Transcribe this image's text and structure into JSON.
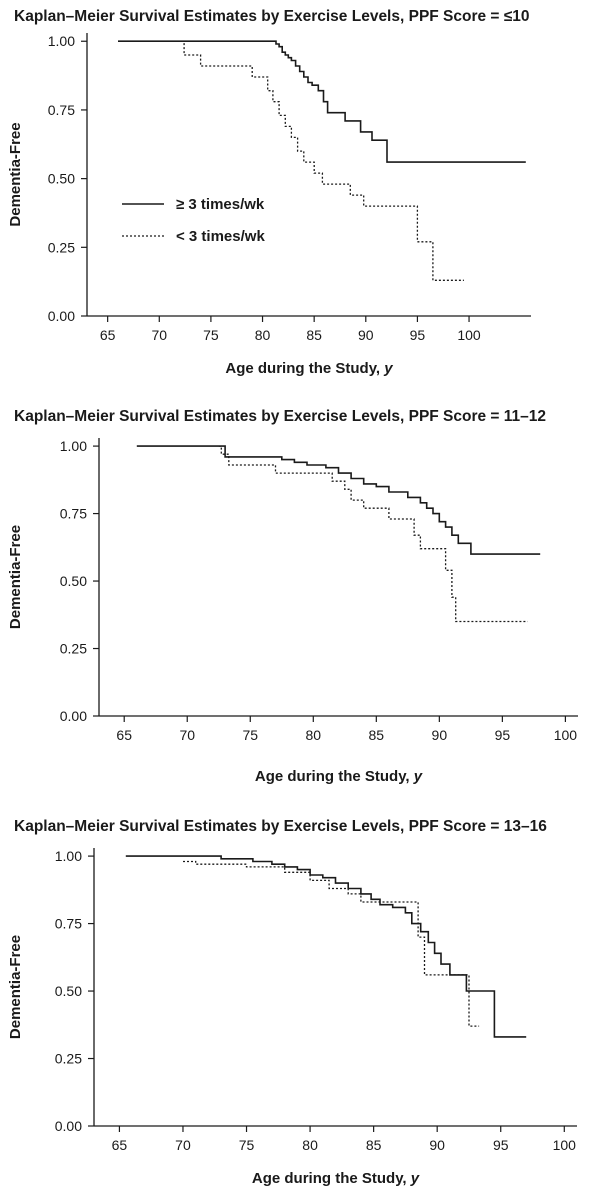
{
  "chart_data": [
    {
      "type": "line",
      "step": true,
      "title": "Kaplan–Meier Survival Estimates by Exercise Levels, PPF Score = ≤10",
      "xlabel": "Age during the Study,",
      "xlabel_var": "y",
      "ylabel": "Dementia-Free",
      "xlim": [
        63,
        106
      ],
      "ylim": [
        0,
        1.03
      ],
      "xticks": [
        "65",
        "70",
        "75",
        "80",
        "85",
        "90",
        "95",
        "100"
      ],
      "yticks": [
        "1.00",
        "0.75",
        "0.50",
        "0.25",
        "0.00"
      ],
      "legend_position": "left-middle",
      "legend": [
        {
          "label": "≥ 3 times/wk",
          "style": "solid"
        },
        {
          "label": "< 3 times/wk",
          "style": "dotted"
        }
      ],
      "series": [
        {
          "name": "≥ 3 times/wk",
          "style": "solid",
          "x": [
            66,
            81,
            81.3,
            81.6,
            81.9,
            82.2,
            82.5,
            82.8,
            83.2,
            83.6,
            84.0,
            84.4,
            84.8,
            85.4,
            85.9,
            86.3,
            87.0,
            88.0,
            89.5,
            90.6,
            92.0,
            92.05,
            105.5
          ],
          "y": [
            1.0,
            1.0,
            0.99,
            0.98,
            0.96,
            0.95,
            0.94,
            0.93,
            0.91,
            0.89,
            0.87,
            0.85,
            0.84,
            0.82,
            0.78,
            0.74,
            0.74,
            0.71,
            0.67,
            0.64,
            0.64,
            0.56,
            0.56
          ]
        },
        {
          "name": "< 3 times/wk",
          "style": "dotted",
          "x": [
            72.2,
            72.4,
            74.0,
            78.5,
            79.0,
            80.5,
            81.0,
            81.6,
            82.2,
            82.8,
            83.4,
            84.0,
            85.0,
            85.8,
            87.0,
            88.5,
            89.8,
            91.2,
            95.0,
            96.5,
            99.5
          ],
          "y": [
            1.0,
            0.95,
            0.91,
            0.91,
            0.87,
            0.82,
            0.78,
            0.73,
            0.69,
            0.65,
            0.6,
            0.56,
            0.52,
            0.48,
            0.48,
            0.44,
            0.4,
            0.4,
            0.27,
            0.13,
            0.13
          ]
        }
      ]
    },
    {
      "type": "line",
      "step": true,
      "title": "Kaplan–Meier Survival Estimates by Exercise Levels, PPF Score = 11–12",
      "xlabel": "Age during the Study,",
      "xlabel_var": "y",
      "ylabel": "Dementia-Free",
      "xlim": [
        63,
        101
      ],
      "ylim": [
        0,
        1.03
      ],
      "xticks": [
        "65",
        "70",
        "75",
        "80",
        "85",
        "90",
        "95",
        "100"
      ],
      "yticks": [
        "1.00",
        "0.75",
        "0.50",
        "0.25",
        "0.00"
      ],
      "series": [
        {
          "name": "≥ 3 times/wk",
          "style": "solid",
          "x": [
            66,
            71.5,
            73.0,
            75.0,
            77.5,
            78.5,
            79.5,
            81.0,
            82.0,
            83.0,
            84.0,
            85.0,
            86.0,
            87.5,
            88.5,
            89.0,
            89.5,
            90.0,
            90.5,
            91.0,
            91.5,
            92.5,
            98.0
          ],
          "y": [
            1.0,
            1.0,
            0.96,
            0.96,
            0.95,
            0.94,
            0.93,
            0.92,
            0.9,
            0.88,
            0.86,
            0.85,
            0.83,
            0.81,
            0.79,
            0.77,
            0.75,
            0.72,
            0.7,
            0.67,
            0.64,
            0.6,
            0.6
          ]
        },
        {
          "name": "< 3 times/wk",
          "style": "dotted",
          "x": [
            72.5,
            72.7,
            73.3,
            76.0,
            77.0,
            80.5,
            81.5,
            82.5,
            83.0,
            84.0,
            86.0,
            87.0,
            88.0,
            88.5,
            89.5,
            90.5,
            91.0,
            91.3,
            97.0
          ],
          "y": [
            1.0,
            0.97,
            0.93,
            0.93,
            0.9,
            0.9,
            0.87,
            0.84,
            0.8,
            0.77,
            0.73,
            0.73,
            0.67,
            0.62,
            0.62,
            0.54,
            0.44,
            0.35,
            0.35
          ]
        }
      ]
    },
    {
      "type": "line",
      "step": true,
      "title": "Kaplan–Meier Survival Estimates by Exercise Levels, PPF Score = 13–16",
      "xlabel": "Age during the Study,",
      "xlabel_var": "y",
      "ylabel": "Dementia-Free",
      "xlim": [
        63,
        101
      ],
      "ylim": [
        0,
        1.03
      ],
      "xticks": [
        "65",
        "70",
        "75",
        "80",
        "85",
        "90",
        "95",
        "100"
      ],
      "yticks": [
        "1.00",
        "0.75",
        "0.50",
        "0.25",
        "0.00"
      ],
      "series": [
        {
          "name": "≥ 3 times/wk",
          "style": "solid",
          "x": [
            65.5,
            73.0,
            75.5,
            77.0,
            78.0,
            79.0,
            80.0,
            81.0,
            82.0,
            83.0,
            84.0,
            84.8,
            85.5,
            86.5,
            87.5,
            88.0,
            88.7,
            89.3,
            89.8,
            90.3,
            91.0,
            92.3,
            94.5,
            97.0
          ],
          "y": [
            1.0,
            0.99,
            0.98,
            0.97,
            0.96,
            0.95,
            0.93,
            0.92,
            0.9,
            0.88,
            0.86,
            0.84,
            0.82,
            0.81,
            0.79,
            0.75,
            0.72,
            0.68,
            0.64,
            0.6,
            0.56,
            0.5,
            0.33,
            0.33
          ]
        },
        {
          "name": "< 3 times/wk",
          "style": "dotted",
          "x": [
            70.0,
            71.0,
            75.0,
            78.0,
            80.0,
            81.5,
            83.0,
            84.0,
            88.0,
            88.5,
            89.0,
            90.5,
            92.0,
            92.5,
            93.3
          ],
          "y": [
            0.98,
            0.97,
            0.96,
            0.94,
            0.91,
            0.88,
            0.86,
            0.83,
            0.83,
            0.7,
            0.56,
            0.56,
            0.56,
            0.37,
            0.37
          ]
        }
      ]
    }
  ]
}
